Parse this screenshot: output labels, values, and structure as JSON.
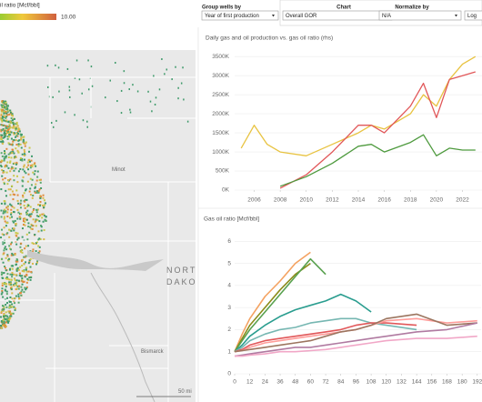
{
  "legend": {
    "title": "il ratio [Mcf/bbl]",
    "max_label": "10.00"
  },
  "controls": {
    "group_label": "Group wells by",
    "group_value": "Year of first production",
    "chart_label": "Chart",
    "chart_value": "Overall GOR",
    "normalize_label": "Normalize by",
    "normalize_value": "N/A",
    "log_button": "Log"
  },
  "map": {
    "labels": [
      "Minot",
      "Bismarck"
    ],
    "state_line1": "NORTH",
    "state_line2": "DAKOTA",
    "scale": "50 mi"
  },
  "chart_data": [
    {
      "type": "line",
      "title": "Daily gas and oil production vs. gas oil ratio (rhs)",
      "x": [
        2005,
        2006,
        2007,
        2008,
        2010,
        2012,
        2014,
        2015,
        2016,
        2018,
        2019,
        2020,
        2021,
        2022,
        2023
      ],
      "xlim": [
        2004.5,
        2023.5
      ],
      "xticks": [
        2006,
        2008,
        2010,
        2012,
        2014,
        2016,
        2018,
        2020,
        2022
      ],
      "ylim": [
        0,
        3600000
      ],
      "yticks": [
        {
          "value": 0,
          "label": "0K"
        },
        {
          "value": 500000,
          "label": "500K"
        },
        {
          "value": 1000000,
          "label": "1000K"
        },
        {
          "value": 1500000,
          "label": "1500K"
        },
        {
          "value": 2000000,
          "label": "2000K"
        },
        {
          "value": 2500000,
          "label": "2500K"
        },
        {
          "value": 3000000,
          "label": "3000K"
        },
        {
          "value": 3500000,
          "label": "3500K"
        }
      ],
      "grid": true,
      "series": [
        {
          "color": "#e8c341",
          "values": [
            1100000,
            1700000,
            1200000,
            1000000,
            900000,
            1200000,
            1500000,
            1700000,
            1600000,
            2000000,
            2500000,
            2200000,
            2900000,
            3300000,
            3500000
          ]
        },
        {
          "color": "#e15759",
          "values": [
            null,
            null,
            null,
            50000,
            400000,
            1000000,
            1700000,
            1700000,
            1500000,
            2200000,
            2800000,
            1900000,
            2900000,
            3000000,
            3100000
          ]
        },
        {
          "color": "#4e9a3e",
          "values": [
            null,
            null,
            null,
            100000,
            350000,
            700000,
            1150000,
            1200000,
            1000000,
            1250000,
            1450000,
            900000,
            1100000,
            1050000,
            1050000
          ]
        }
      ]
    },
    {
      "type": "line",
      "title": "Gas oil ratio [Mcf/bbl]",
      "x": [
        0,
        6,
        12,
        24,
        36,
        48,
        60,
        72,
        84,
        96,
        108,
        120,
        144,
        168,
        192
      ],
      "xlim": [
        0,
        195
      ],
      "xticks": [
        0,
        12,
        24,
        36,
        48,
        60,
        72,
        84,
        96,
        108,
        120,
        132,
        144,
        156,
        168,
        180,
        192
      ],
      "ylim": [
        0,
        6.3
      ],
      "yticks": [
        0,
        1,
        2,
        3,
        4,
        5,
        6
      ],
      "grid": true,
      "series": [
        {
          "color": "#f4a261",
          "values": [
            1,
            1.8,
            2.5,
            3.5,
            4.2,
            5,
            5.5,
            null,
            null,
            null,
            null,
            null,
            null,
            null,
            null
          ]
        },
        {
          "color": "#8c8c1a",
          "values": [
            1,
            1.6,
            2.2,
            3,
            3.8,
            4.5,
            5,
            null,
            null,
            null,
            null,
            null,
            null,
            null,
            null
          ]
        },
        {
          "color": "#59a14f",
          "values": [
            1,
            1.5,
            2,
            2.8,
            3.6,
            4.4,
            5.2,
            4.5,
            null,
            null,
            null,
            null,
            null,
            null,
            null
          ]
        },
        {
          "color": "#2a9d8f",
          "values": [
            1,
            1.3,
            1.7,
            2.2,
            2.6,
            2.9,
            3.1,
            3.3,
            3.6,
            3.3,
            2.8,
            null,
            null,
            null,
            null
          ]
        },
        {
          "color": "#76b7b2",
          "values": [
            1,
            1.2,
            1.5,
            1.8,
            2,
            2.1,
            2.3,
            2.4,
            2.5,
            2.5,
            2.3,
            2.2,
            2,
            null,
            null
          ]
        },
        {
          "color": "#e15759",
          "values": [
            1,
            1.1,
            1.3,
            1.5,
            1.6,
            1.7,
            1.8,
            1.9,
            2,
            2.2,
            2.3,
            2.3,
            2.2,
            null,
            null
          ]
        },
        {
          "color": "#ff9d9a",
          "values": [
            1,
            1.05,
            1.2,
            1.4,
            1.5,
            1.6,
            1.7,
            1.8,
            1.9,
            2,
            2.2,
            2.4,
            2.5,
            2.3,
            2.4
          ]
        },
        {
          "color": "#9c755f",
          "values": [
            1,
            1.05,
            1.1,
            1.2,
            1.3,
            1.4,
            1.5,
            1.7,
            1.9,
            2,
            2.2,
            2.5,
            2.7,
            2.2,
            2.3
          ]
        },
        {
          "color": "#b07aa1",
          "values": [
            0.8,
            0.85,
            0.9,
            1,
            1.1,
            1.2,
            1.2,
            1.3,
            1.4,
            1.5,
            1.6,
            1.7,
            1.9,
            2,
            2.3
          ]
        },
        {
          "color": "#f1a7c7",
          "values": [
            0.8,
            0.8,
            0.85,
            0.9,
            1,
            1,
            1.05,
            1.1,
            1.2,
            1.3,
            1.4,
            1.5,
            1.6,
            1.6,
            1.7
          ]
        }
      ]
    }
  ]
}
